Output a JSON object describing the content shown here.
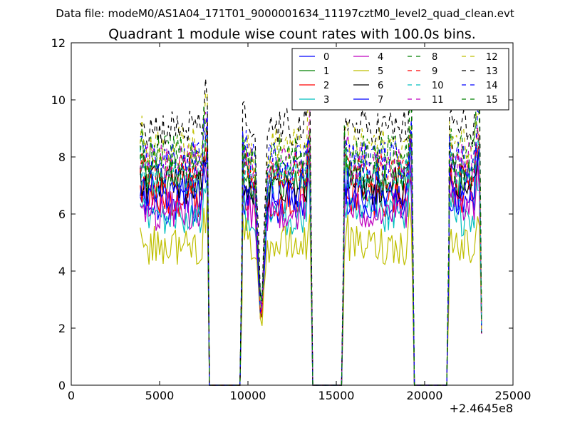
{
  "suptitle": "Data file: modeM0/AS1A04_171T01_9000001634_11197cztM0_level2_quad_clean.evt",
  "chart_data": {
    "type": "line",
    "title": "Quadrant 1 module wise count rates with 100.0s bins.",
    "xlabel": "",
    "ylabel": "",
    "x_offset_label": "+2.4645e8",
    "xlim": [
      0,
      25000
    ],
    "ylim": [
      0,
      12
    ],
    "x_ticks": [
      0,
      5000,
      10000,
      15000,
      20000,
      25000
    ],
    "y_ticks": [
      0,
      2,
      4,
      6,
      8,
      10,
      12
    ],
    "grid": false,
    "legend_location": "top-right",
    "legend_columns": 4,
    "observation_segments": [
      {
        "start": 3900,
        "end": 7700,
        "drop_to": 0
      },
      {
        "start": 9700,
        "end": 13550,
        "dip_center": 10750,
        "dip_floor": 1.7,
        "drop_to": 0
      },
      {
        "start": 15450,
        "end": 19300,
        "drop_to": 0
      },
      {
        "start": 21400,
        "end": 23100,
        "drop_to": 1.8
      }
    ],
    "gap_level": 0,
    "series": [
      {
        "name": "0",
        "style": "solid",
        "color": "#0000ff",
        "mean_rate": 6.3
      },
      {
        "name": "1",
        "style": "solid",
        "color": "#008000",
        "mean_rate": 7.2
      },
      {
        "name": "2",
        "style": "solid",
        "color": "#ff0000",
        "mean_rate": 6.6
      },
      {
        "name": "3",
        "style": "solid",
        "color": "#00bfbf",
        "mean_rate": 5.9
      },
      {
        "name": "4",
        "style": "solid",
        "color": "#bf00bf",
        "mean_rate": 6.1
      },
      {
        "name": "5",
        "style": "solid",
        "color": "#bfbf00",
        "mean_rate": 4.9
      },
      {
        "name": "6",
        "style": "solid",
        "color": "#000000",
        "mean_rate": 7.0
      },
      {
        "name": "7",
        "style": "solid",
        "color": "#0000ff",
        "mean_rate": 6.8
      },
      {
        "name": "8",
        "style": "dashed",
        "color": "#008000",
        "mean_rate": 7.6
      },
      {
        "name": "9",
        "style": "dashed",
        "color": "#ff0000",
        "mean_rate": 7.5
      },
      {
        "name": "10",
        "style": "dashed",
        "color": "#00bfbf",
        "mean_rate": 7.3
      },
      {
        "name": "11",
        "style": "dashed",
        "color": "#bf00bf",
        "mean_rate": 7.8
      },
      {
        "name": "12",
        "style": "dashed",
        "color": "#bfbf00",
        "mean_rate": 8.4
      },
      {
        "name": "13",
        "style": "dashed",
        "color": "#000000",
        "mean_rate": 9.0
      },
      {
        "name": "14",
        "style": "dashed",
        "color": "#0000ff",
        "mean_rate": 7.9
      },
      {
        "name": "15",
        "style": "dashed",
        "color": "#008000",
        "mean_rate": 8.1
      }
    ]
  }
}
